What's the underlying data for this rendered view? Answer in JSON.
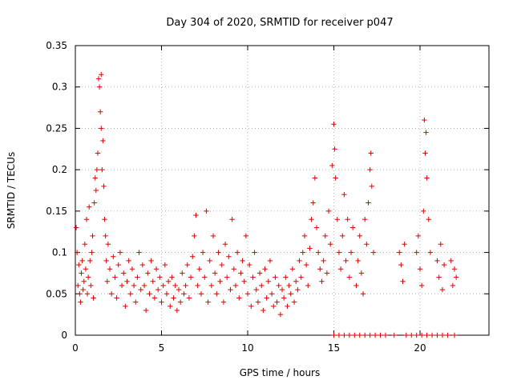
{
  "chart_data": {
    "type": "scatter",
    "title": "Day 304 of 2020, SRMTID for receiver p047",
    "xlabel": "GPS time / hours",
    "ylabel": "SRMTID / TECUs",
    "xlim": [
      0,
      24
    ],
    "ylim": [
      0,
      0.35
    ],
    "x_ticks": [
      0,
      5,
      10,
      15,
      20
    ],
    "x_tick_labels": [
      "0",
      "5",
      "10",
      "15",
      "20"
    ],
    "y_ticks": [
      0,
      0.05,
      0.1,
      0.15,
      0.2,
      0.25,
      0.3,
      0.35
    ],
    "y_tick_labels": [
      "0",
      "0.05",
      "0.1",
      "0.15",
      "0.2",
      "0.25",
      "0.3",
      "0.35"
    ],
    "grid": true,
    "marker": "+",
    "color": "#e00000",
    "series": [
      {
        "name": "SRMTID",
        "points": [
          [
            0.05,
            0.13
          ],
          [
            0.1,
            0.1
          ],
          [
            0.15,
            0.06
          ],
          [
            0.2,
            0.085
          ],
          [
            0.25,
            0.05
          ],
          [
            0.3,
            0.04
          ],
          [
            0.35,
            0.075
          ],
          [
            0.4,
            0.09
          ],
          [
            0.45,
            0.055
          ],
          [
            0.5,
            0.065
          ],
          [
            0.55,
            0.11
          ],
          [
            0.6,
            0.08
          ],
          [
            0.65,
            0.14
          ],
          [
            0.7,
            0.05
          ],
          [
            0.75,
            0.07
          ],
          [
            0.8,
            0.155
          ],
          [
            0.85,
            0.09
          ],
          [
            0.9,
            0.06
          ],
          [
            0.95,
            0.1
          ],
          [
            1.0,
            0.12
          ],
          [
            1.05,
            0.045
          ],
          [
            1.1,
            0.16
          ],
          [
            1.15,
            0.19
          ],
          [
            1.2,
            0.175
          ],
          [
            1.25,
            0.2
          ],
          [
            1.3,
            0.22
          ],
          [
            1.35,
            0.31
          ],
          [
            1.4,
            0.3
          ],
          [
            1.45,
            0.27
          ],
          [
            1.5,
            0.315
          ],
          [
            1.5,
            0.25
          ],
          [
            1.55,
            0.2
          ],
          [
            1.6,
            0.235
          ],
          [
            1.65,
            0.18
          ],
          [
            1.7,
            0.14
          ],
          [
            1.75,
            0.12
          ],
          [
            1.8,
            0.09
          ],
          [
            1.85,
            0.065
          ],
          [
            1.9,
            0.11
          ],
          [
            2.0,
            0.08
          ],
          [
            2.1,
            0.05
          ],
          [
            2.2,
            0.095
          ],
          [
            2.3,
            0.07
          ],
          [
            2.4,
            0.045
          ],
          [
            2.5,
            0.085
          ],
          [
            2.6,
            0.1
          ],
          [
            2.7,
            0.06
          ],
          [
            2.8,
            0.075
          ],
          [
            2.9,
            0.035
          ],
          [
            3.0,
            0.065
          ],
          [
            3.1,
            0.09
          ],
          [
            3.2,
            0.05
          ],
          [
            3.3,
            0.08
          ],
          [
            3.4,
            0.06
          ],
          [
            3.5,
            0.04
          ],
          [
            3.6,
            0.07
          ],
          [
            3.7,
            0.1
          ],
          [
            3.8,
            0.055
          ],
          [
            3.9,
            0.085
          ],
          [
            4.0,
            0.06
          ],
          [
            4.1,
            0.03
          ],
          [
            4.2,
            0.075
          ],
          [
            4.3,
            0.05
          ],
          [
            4.4,
            0.09
          ],
          [
            4.5,
            0.065
          ],
          [
            4.6,
            0.045
          ],
          [
            4.7,
            0.08
          ],
          [
            4.8,
            0.055
          ],
          [
            4.9,
            0.07
          ],
          [
            5.0,
            0.04
          ],
          [
            5.1,
            0.06
          ],
          [
            5.2,
            0.085
          ],
          [
            5.3,
            0.05
          ],
          [
            5.4,
            0.065
          ],
          [
            5.5,
            0.035
          ],
          [
            5.6,
            0.07
          ],
          [
            5.7,
            0.045
          ],
          [
            5.8,
            0.06
          ],
          [
            5.9,
            0.03
          ],
          [
            6.0,
            0.055
          ],
          [
            6.1,
            0.04
          ],
          [
            6.2,
            0.075
          ],
          [
            6.3,
            0.05
          ],
          [
            6.4,
            0.06
          ],
          [
            6.5,
            0.085
          ],
          [
            6.6,
            0.045
          ],
          [
            6.7,
            0.07
          ],
          [
            6.8,
            0.095
          ],
          [
            6.9,
            0.12
          ],
          [
            7.0,
            0.145
          ],
          [
            7.1,
            0.06
          ],
          [
            7.2,
            0.08
          ],
          [
            7.3,
            0.05
          ],
          [
            7.4,
            0.1
          ],
          [
            7.5,
            0.07
          ],
          [
            7.6,
            0.15
          ],
          [
            7.7,
            0.04
          ],
          [
            7.8,
            0.09
          ],
          [
            7.9,
            0.06
          ],
          [
            8.0,
            0.12
          ],
          [
            8.1,
            0.075
          ],
          [
            8.2,
            0.05
          ],
          [
            8.3,
            0.1
          ],
          [
            8.4,
            0.065
          ],
          [
            8.5,
            0.085
          ],
          [
            8.6,
            0.04
          ],
          [
            8.7,
            0.11
          ],
          [
            8.8,
            0.07
          ],
          [
            8.9,
            0.095
          ],
          [
            9.0,
            0.055
          ],
          [
            9.1,
            0.14
          ],
          [
            9.2,
            0.08
          ],
          [
            9.3,
            0.06
          ],
          [
            9.4,
            0.1
          ],
          [
            9.5,
            0.045
          ],
          [
            9.6,
            0.075
          ],
          [
            9.7,
            0.09
          ],
          [
            9.8,
            0.065
          ],
          [
            9.9,
            0.12
          ],
          [
            10.0,
            0.05
          ],
          [
            10.1,
            0.085
          ],
          [
            10.2,
            0.035
          ],
          [
            10.3,
            0.07
          ],
          [
            10.4,
            0.1
          ],
          [
            10.5,
            0.055
          ],
          [
            10.6,
            0.04
          ],
          [
            10.7,
            0.075
          ],
          [
            10.8,
            0.06
          ],
          [
            10.9,
            0.03
          ],
          [
            11.0,
            0.08
          ],
          [
            11.1,
            0.045
          ],
          [
            11.2,
            0.065
          ],
          [
            11.3,
            0.09
          ],
          [
            11.4,
            0.05
          ],
          [
            11.5,
            0.035
          ],
          [
            11.6,
            0.07
          ],
          [
            11.7,
            0.04
          ],
          [
            11.8,
            0.06
          ],
          [
            11.9,
            0.025
          ],
          [
            12.0,
            0.055
          ],
          [
            12.1,
            0.045
          ],
          [
            12.2,
            0.07
          ],
          [
            12.3,
            0.035
          ],
          [
            12.4,
            0.06
          ],
          [
            12.5,
            0.05
          ],
          [
            12.6,
            0.08
          ],
          [
            12.7,
            0.04
          ],
          [
            12.8,
            0.065
          ],
          [
            12.9,
            0.055
          ],
          [
            13.0,
            0.09
          ],
          [
            13.1,
            0.07
          ],
          [
            13.2,
            0.1
          ],
          [
            13.3,
            0.12
          ],
          [
            13.4,
            0.085
          ],
          [
            13.5,
            0.06
          ],
          [
            13.6,
            0.105
          ],
          [
            13.7,
            0.14
          ],
          [
            13.8,
            0.16
          ],
          [
            13.9,
            0.19
          ],
          [
            14.0,
            0.13
          ],
          [
            14.1,
            0.1
          ],
          [
            14.2,
            0.08
          ],
          [
            14.3,
            0.065
          ],
          [
            14.4,
            0.09
          ],
          [
            14.5,
            0.12
          ],
          [
            14.6,
            0.075
          ],
          [
            14.7,
            0.15
          ],
          [
            14.8,
            0.11
          ],
          [
            14.9,
            0.205
          ],
          [
            15.0,
            0.255
          ],
          [
            15.05,
            0.225
          ],
          [
            15.1,
            0.19
          ],
          [
            15.2,
            0.14
          ],
          [
            15.3,
            0.1
          ],
          [
            15.4,
            0.08
          ],
          [
            15.5,
            0.12
          ],
          [
            15.6,
            0.17
          ],
          [
            15.7,
            0.09
          ],
          [
            15.8,
            0.14
          ],
          [
            15.9,
            0.07
          ],
          [
            16.0,
            0.1
          ],
          [
            16.1,
            0.13
          ],
          [
            16.3,
            0.06
          ],
          [
            16.4,
            0.09
          ],
          [
            16.5,
            0.12
          ],
          [
            16.6,
            0.075
          ],
          [
            16.7,
            0.05
          ],
          [
            16.8,
            0.14
          ],
          [
            16.9,
            0.11
          ],
          [
            17.0,
            0.16
          ],
          [
            17.1,
            0.2
          ],
          [
            17.15,
            0.22
          ],
          [
            17.2,
            0.18
          ],
          [
            17.3,
            0.1
          ],
          [
            18.8,
            0.1
          ],
          [
            18.9,
            0.085
          ],
          [
            19.0,
            0.065
          ],
          [
            19.1,
            0.11
          ],
          [
            19.8,
            0.1
          ],
          [
            19.9,
            0.12
          ],
          [
            20.0,
            0.08
          ],
          [
            20.1,
            0.06
          ],
          [
            20.2,
            0.15
          ],
          [
            20.25,
            0.26
          ],
          [
            20.3,
            0.22
          ],
          [
            20.35,
            0.245
          ],
          [
            20.4,
            0.19
          ],
          [
            20.5,
            0.14
          ],
          [
            20.6,
            0.1
          ],
          [
            21.0,
            0.09
          ],
          [
            21.1,
            0.07
          ],
          [
            21.2,
            0.11
          ],
          [
            21.3,
            0.055
          ],
          [
            21.4,
            0.085
          ],
          [
            21.8,
            0.09
          ],
          [
            21.9,
            0.06
          ],
          [
            22.0,
            0.08
          ],
          [
            22.1,
            0.07
          ],
          [
            15.0,
            0
          ],
          [
            15.3,
            0
          ],
          [
            15.6,
            0
          ],
          [
            15.9,
            0
          ],
          [
            16.2,
            0
          ],
          [
            16.5,
            0
          ],
          [
            16.8,
            0
          ],
          [
            17.1,
            0
          ],
          [
            17.4,
            0
          ],
          [
            17.7,
            0
          ],
          [
            18.0,
            0
          ],
          [
            18.5,
            0
          ],
          [
            19.2,
            0
          ],
          [
            19.5,
            0
          ],
          [
            19.8,
            0
          ],
          [
            20.1,
            0
          ],
          [
            20.4,
            0
          ],
          [
            20.7,
            0
          ],
          [
            21.0,
            0
          ],
          [
            21.3,
            0
          ],
          [
            21.6,
            0
          ],
          [
            22.0,
            0
          ]
        ]
      }
    ]
  }
}
